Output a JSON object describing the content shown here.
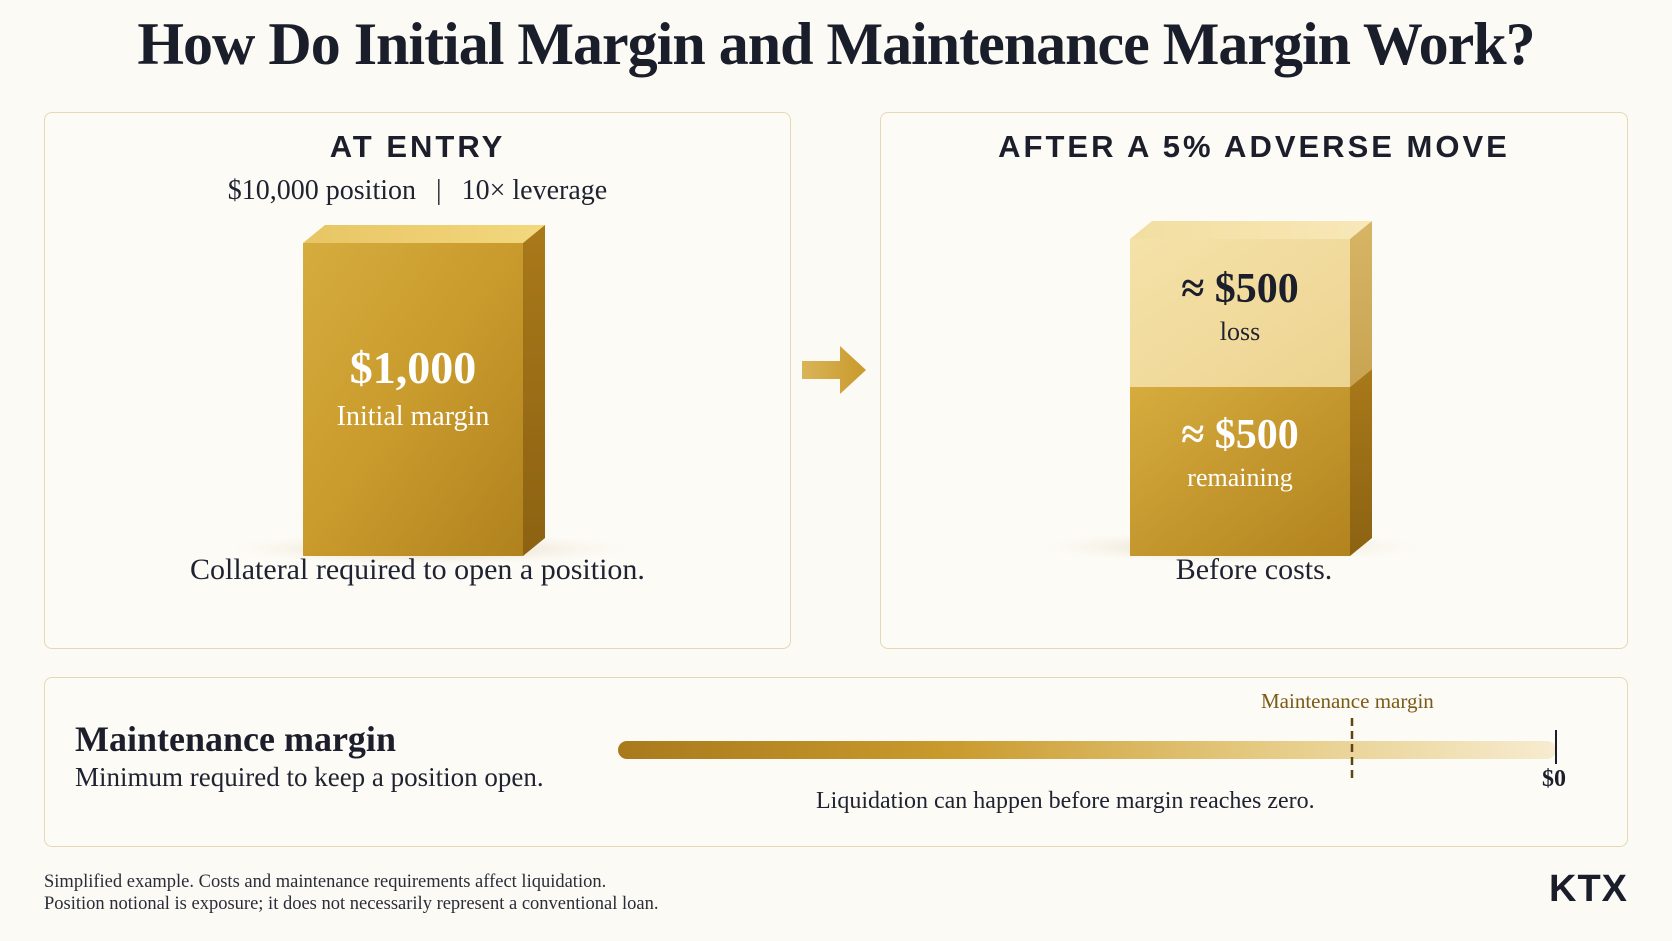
{
  "title": "How Do Initial Margin and Maintenance Margin Work?",
  "entry_panel": {
    "heading": "AT ENTRY",
    "position": "$10,000 position",
    "separator": "|",
    "leverage": "10× leverage",
    "block_value": "$1,000",
    "block_label": "Initial margin",
    "caption": "Collateral required to open a position."
  },
  "after_panel": {
    "heading": "AFTER A 5% ADVERSE MOVE",
    "loss_value": "≈ $500",
    "loss_label": "loss",
    "remaining_value": "≈ $500",
    "remaining_label": "remaining",
    "caption": "Before costs."
  },
  "maintenance_panel": {
    "title": "Maintenance margin",
    "description": "Minimum required to keep a position open.",
    "marker_label": "Maintenance margin",
    "zero_label": "$0",
    "note": "Liquidation can happen before margin reaches zero."
  },
  "footnotes": [
    "Simplified example. Costs and maintenance requirements affect liquidation.",
    "Position notional is exposure; it does not necessarily represent a conventional loan."
  ],
  "brand": "KTX",
  "colors": {
    "gold_dark": "#a7781a",
    "gold": "#d4a93c",
    "gold_light": "#f2dfa2",
    "accent_text": "#7a5a16",
    "border": "#e6d7b6"
  },
  "icons": [
    "right-arrow-icon"
  ]
}
